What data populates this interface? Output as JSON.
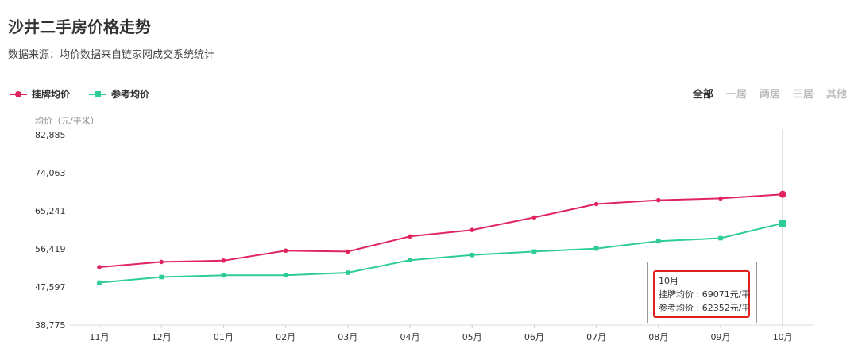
{
  "header": {
    "title": "沙井二手房价格走势",
    "source": "数据来源：均价数据来自链家网成交系统统计"
  },
  "filters": [
    {
      "label": "全部",
      "active": true
    },
    {
      "label": "一居",
      "active": false
    },
    {
      "label": "两居",
      "active": false
    },
    {
      "label": "三居",
      "active": false
    },
    {
      "label": "其他",
      "active": false
    }
  ],
  "tooltip": {
    "month": "10月",
    "listing_line": "挂牌均价 : 69071元/平",
    "reference_line": "参考均价 : 62352元/平",
    "highlight_color": "#e02020"
  },
  "chart_data": {
    "type": "line",
    "ylabel": "均价（元/平米）",
    "categories": [
      "11月",
      "12月",
      "01月",
      "02月",
      "03月",
      "04月",
      "05月",
      "06月",
      "07月",
      "08月",
      "09月",
      "10月"
    ],
    "yticks": [
      "82,885",
      "74,063",
      "65,241",
      "56,419",
      "47,597",
      "38,775"
    ],
    "ylim": [
      38775,
      82885
    ],
    "series": [
      {
        "name": "挂牌均价",
        "color": "#e0245e",
        "marker": "circle",
        "values": [
          52200,
          53400,
          53700,
          56000,
          55800,
          59300,
          60800,
          63700,
          66800,
          67700,
          68100,
          69071
        ]
      },
      {
        "name": "参考均价",
        "color": "#2ecc9a",
        "marker": "square",
        "values": [
          48600,
          49900,
          50300,
          50300,
          50900,
          53800,
          55000,
          55800,
          56500,
          58200,
          58900,
          62352
        ]
      }
    ],
    "highlight_index": 11,
    "grid": false,
    "legend": "top-left"
  }
}
